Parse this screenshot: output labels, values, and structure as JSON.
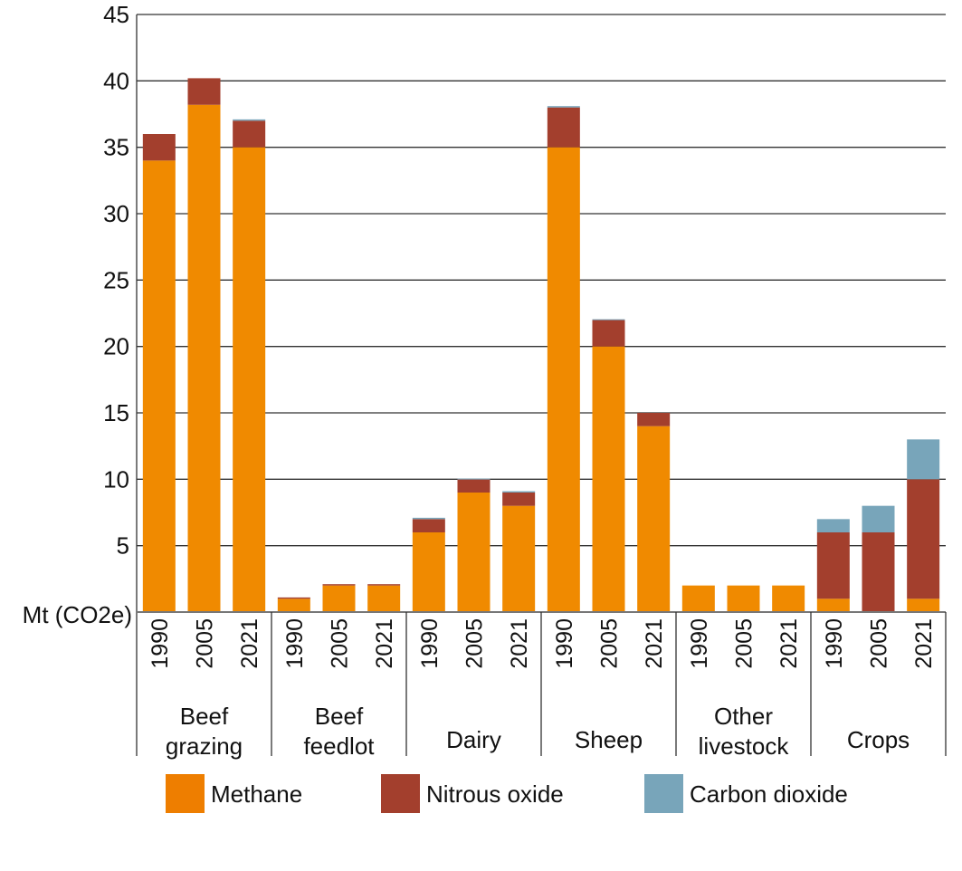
{
  "chart_data": {
    "type": "bar",
    "stacked": true,
    "title": "",
    "xlabel": "",
    "ylabel": "Mt (CO2e)",
    "ylim": [
      0,
      45
    ],
    "yticks": [
      5,
      10,
      15,
      20,
      25,
      30,
      35,
      40,
      45
    ],
    "grid": true,
    "legend_position": "bottom",
    "groups": [
      "Beef grazing",
      "Beef feedlot",
      "Dairy",
      "Sheep",
      "Other livestock",
      "Crops"
    ],
    "group_label_lines": [
      [
        "Beef",
        "grazing"
      ],
      [
        "Beef",
        "feedlot"
      ],
      [
        "Dairy"
      ],
      [
        "Sheep"
      ],
      [
        "Other",
        "livestock"
      ],
      [
        "Crops"
      ]
    ],
    "years": [
      "1990",
      "2005",
      "2021"
    ],
    "series": [
      {
        "name": "Methane",
        "color": "#F08A00",
        "legend_color": "#EE7E00",
        "values": [
          [
            34,
            38.2,
            35
          ],
          [
            1,
            2,
            2
          ],
          [
            6,
            9,
            8
          ],
          [
            35,
            20,
            14
          ],
          [
            2,
            2,
            2
          ],
          [
            1,
            0,
            1
          ]
        ]
      },
      {
        "name": "Nitrous oxide",
        "color": "#A33F2D",
        "legend_color": "#A33F2D",
        "values": [
          [
            2,
            2,
            2
          ],
          [
            0.1,
            0.1,
            0.1
          ],
          [
            1,
            1,
            1
          ],
          [
            3,
            2,
            1
          ],
          [
            0,
            0,
            0
          ],
          [
            5,
            6,
            9
          ]
        ]
      },
      {
        "name": "Carbon dioxide",
        "color": "#78A5BA",
        "legend_color": "#78A5BA",
        "values": [
          [
            0,
            0,
            0.1
          ],
          [
            0,
            0,
            0
          ],
          [
            0.1,
            0.05,
            0.1
          ],
          [
            0.1,
            0.05,
            0
          ],
          [
            0,
            0,
            0
          ],
          [
            1,
            2,
            3
          ]
        ]
      }
    ]
  }
}
